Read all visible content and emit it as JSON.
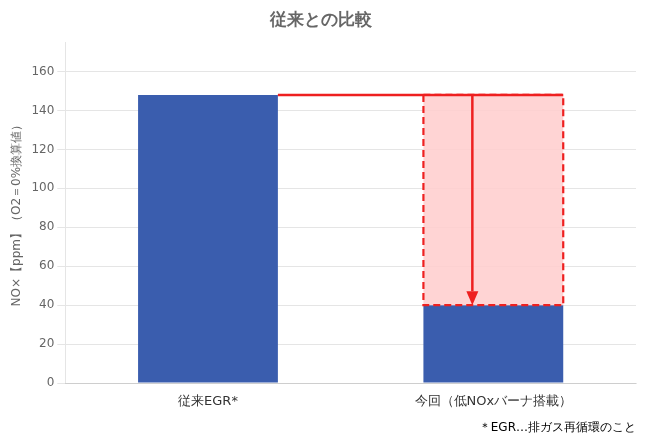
{
  "chart_data": {
    "type": "bar",
    "title": "従来との比較",
    "ylabel": "NO×【ppm】（O2＝0%換算値）",
    "categories": [
      "従来EGR*",
      "今回（低NOxバーナ搭載）"
    ],
    "values": [
      148,
      40
    ],
    "color": "#3A5DAE",
    "ylim": [
      0,
      175
    ],
    "yticks": [
      0,
      20,
      40,
      60,
      80,
      100,
      120,
      140,
      160
    ],
    "grid": true,
    "annotations": [
      {
        "type": "arrow",
        "from": 148,
        "to": 40,
        "color": "#EE2020",
        "fill_color": "#FFCCCC"
      }
    ],
    "footnote": "＊EGR…排ガス再循環のこと"
  }
}
